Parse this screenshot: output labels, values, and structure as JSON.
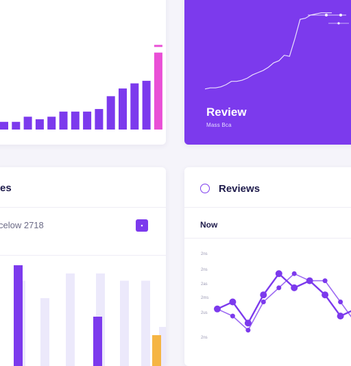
{
  "colors": {
    "accent": "#7c3aed",
    "accent_light": "#ece9fb",
    "highlight_pink": "#e94fd6",
    "highlight_orange": "#f5b544",
    "text_dark": "#1e1b4b"
  },
  "review_card": {
    "title": "Review",
    "subtitle": "Mass Bca"
  },
  "bar_card": {
    "title": "es",
    "row_text": "celow 2718",
    "badge_icon": "square-icon"
  },
  "reviews_card": {
    "title": "Reviews",
    "icon": "smiley-icon",
    "filter_label": "Now",
    "y_ticks": [
      "2ns",
      "2ns",
      "2as",
      "2ms",
      "2us",
      "2ns"
    ]
  },
  "chart_data": [
    {
      "type": "bar",
      "values": [
        3,
        3,
        5,
        4,
        5,
        7,
        7,
        7,
        8,
        13,
        16,
        18,
        19,
        30
      ],
      "highlight_index": 13,
      "cap_value": 33,
      "ylim": [
        0,
        35
      ]
    },
    {
      "type": "line",
      "values": [
        2,
        3,
        3,
        4,
        6,
        9,
        9,
        10,
        12,
        15,
        17,
        19,
        22,
        26,
        28,
        33,
        32,
        48,
        66,
        67,
        70,
        71,
        72,
        72,
        72
      ],
      "ylim": [
        0,
        80
      ]
    },
    {
      "type": "bar",
      "series": [
        {
          "name": "",
          "values": [
            0.98,
            0,
            0,
            0.48,
            0,
            0,
            0
          ]
        },
        {
          "name": "",
          "values": [
            0.83,
            0.66,
            0.9,
            0.9,
            0.83,
            0.83,
            0.38
          ]
        }
      ],
      "highlight_values": [
        0,
        0,
        0,
        0,
        0,
        0,
        0.3
      ],
      "ylim": [
        0,
        1
      ]
    },
    {
      "type": "line",
      "series": [
        {
          "name": "",
          "values": [
            4,
            5,
            2,
            6,
            9,
            7,
            8,
            6,
            3,
            4
          ]
        },
        {
          "name": "",
          "values": [
            4,
            3,
            1,
            5,
            7,
            9,
            8,
            8,
            5,
            2
          ]
        }
      ],
      "ylim": [
        0,
        10
      ]
    }
  ]
}
